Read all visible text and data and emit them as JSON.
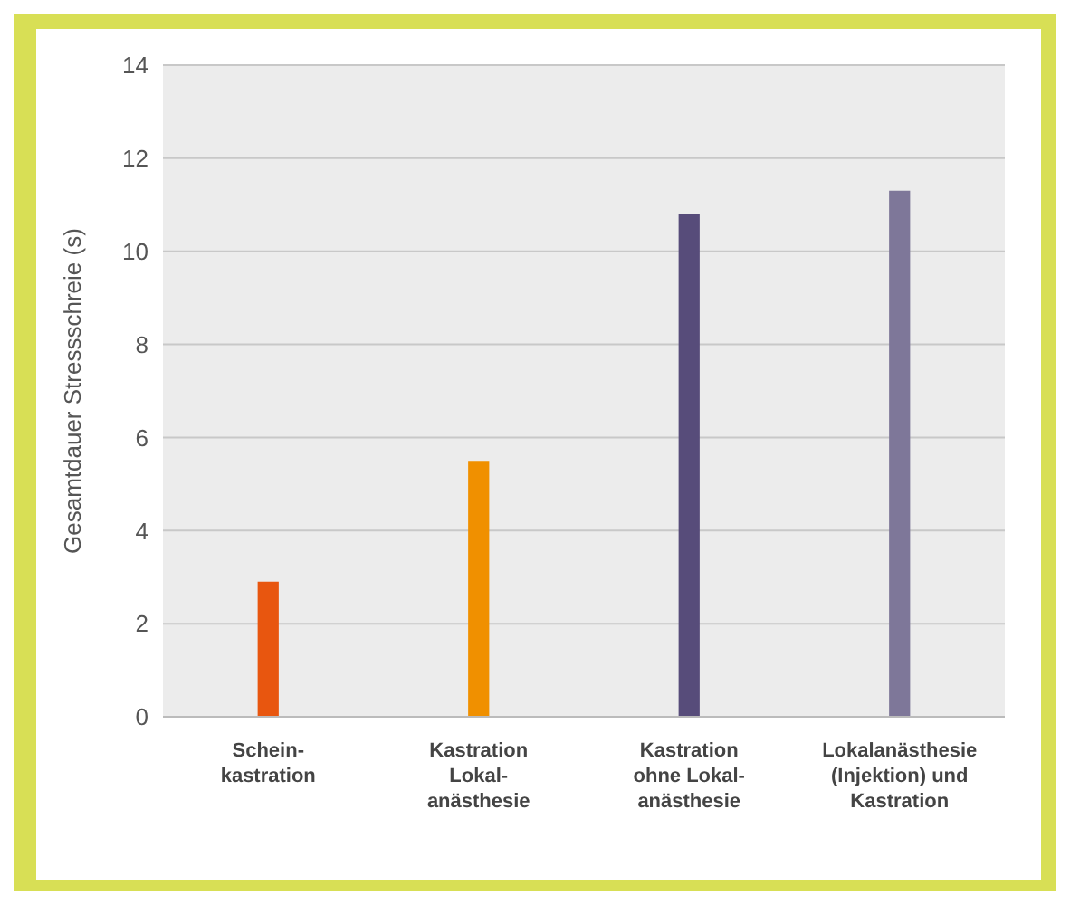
{
  "chart_data": {
    "type": "bar",
    "ylabel": "Gesamtdauer Stressschreie (s)",
    "categories": [
      "Schein-\nkastration",
      "Kastration\nLokal-\nanästhesie",
      "Kastration\nohne Lokal-\nanästhesie",
      "Lokalanästhesie\n(Injektion) und\nKastration"
    ],
    "values": [
      2.9,
      5.5,
      10.8,
      11.3
    ],
    "colors": [
      "#e8560f",
      "#f09000",
      "#574c7a",
      "#7e7799"
    ],
    "ylim": [
      0,
      14
    ],
    "yticks": [
      0,
      2,
      4,
      6,
      8,
      10,
      12,
      14
    ],
    "grid": "y"
  }
}
